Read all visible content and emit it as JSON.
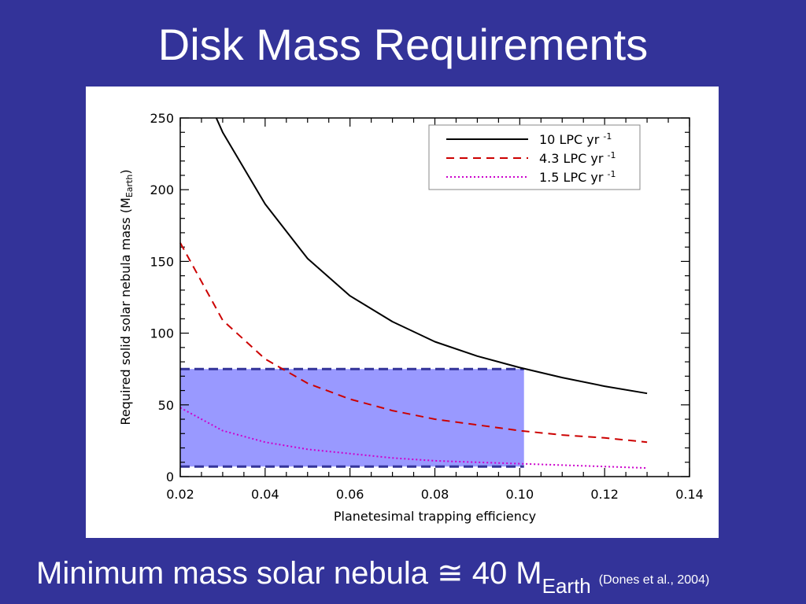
{
  "slide": {
    "title": "Disk Mass Requirements",
    "footer_text": "Minimum mass solar nebula ≅ 40 M",
    "footer_subscript": "Earth",
    "footer_citation": "(Dones et al., 2004)"
  },
  "colors": {
    "background": "#333399",
    "panel": "#ffffff",
    "shade_fill": "#9999ff",
    "shade_edge": "#333399"
  },
  "chart_data": {
    "type": "line",
    "xlabel": "Planetesimal trapping efficiency",
    "ylabel_main": "Required solid solar nebula mass (M",
    "ylabel_sub": "Earth",
    "ylabel_end": ")",
    "xlim": [
      0.02,
      0.14
    ],
    "ylim": [
      0,
      250
    ],
    "xticks": [
      0.02,
      0.04,
      0.06,
      0.08,
      0.1,
      0.12,
      0.14
    ],
    "xtick_labels": [
      "0.02",
      "0.04",
      "0.06",
      "0.08",
      "0.10",
      "0.12",
      "0.14"
    ],
    "yticks": [
      0,
      50,
      100,
      150,
      200,
      250
    ],
    "ytick_labels": [
      "0",
      "50",
      "100",
      "150",
      "200",
      "250"
    ],
    "legend_position": "top-right",
    "series": [
      {
        "name": "10 LPC yr",
        "name_sup": "-1",
        "color": "#000000",
        "dash": "solid",
        "x": [
          0.0285,
          0.03,
          0.04,
          0.05,
          0.06,
          0.07,
          0.08,
          0.09,
          0.1,
          0.11,
          0.12,
          0.13
        ],
        "y": [
          250,
          240,
          190,
          152,
          126,
          108,
          94,
          84,
          76,
          69,
          63,
          58
        ]
      },
      {
        "name": "4.3 LPC yr",
        "name_sup": "-1",
        "color": "#cc0000",
        "dash": "dashed",
        "x": [
          0.02,
          0.03,
          0.04,
          0.05,
          0.06,
          0.07,
          0.08,
          0.09,
          0.1,
          0.11,
          0.12,
          0.13
        ],
        "y": [
          163,
          109,
          82,
          65,
          54,
          46,
          40,
          36,
          32,
          29,
          27,
          24
        ]
      },
      {
        "name": "1.5 LPC yr",
        "name_sup": "-1",
        "color": "#cc00cc",
        "dash": "dotted",
        "x": [
          0.02,
          0.03,
          0.04,
          0.05,
          0.06,
          0.07,
          0.08,
          0.09,
          0.1,
          0.11,
          0.12,
          0.13
        ],
        "y": [
          48,
          32,
          24,
          19,
          16,
          13,
          11,
          10,
          9,
          8,
          7,
          6
        ]
      }
    ],
    "shaded_region": {
      "x": [
        0.02,
        0.101
      ],
      "y": [
        7,
        75
      ]
    }
  }
}
